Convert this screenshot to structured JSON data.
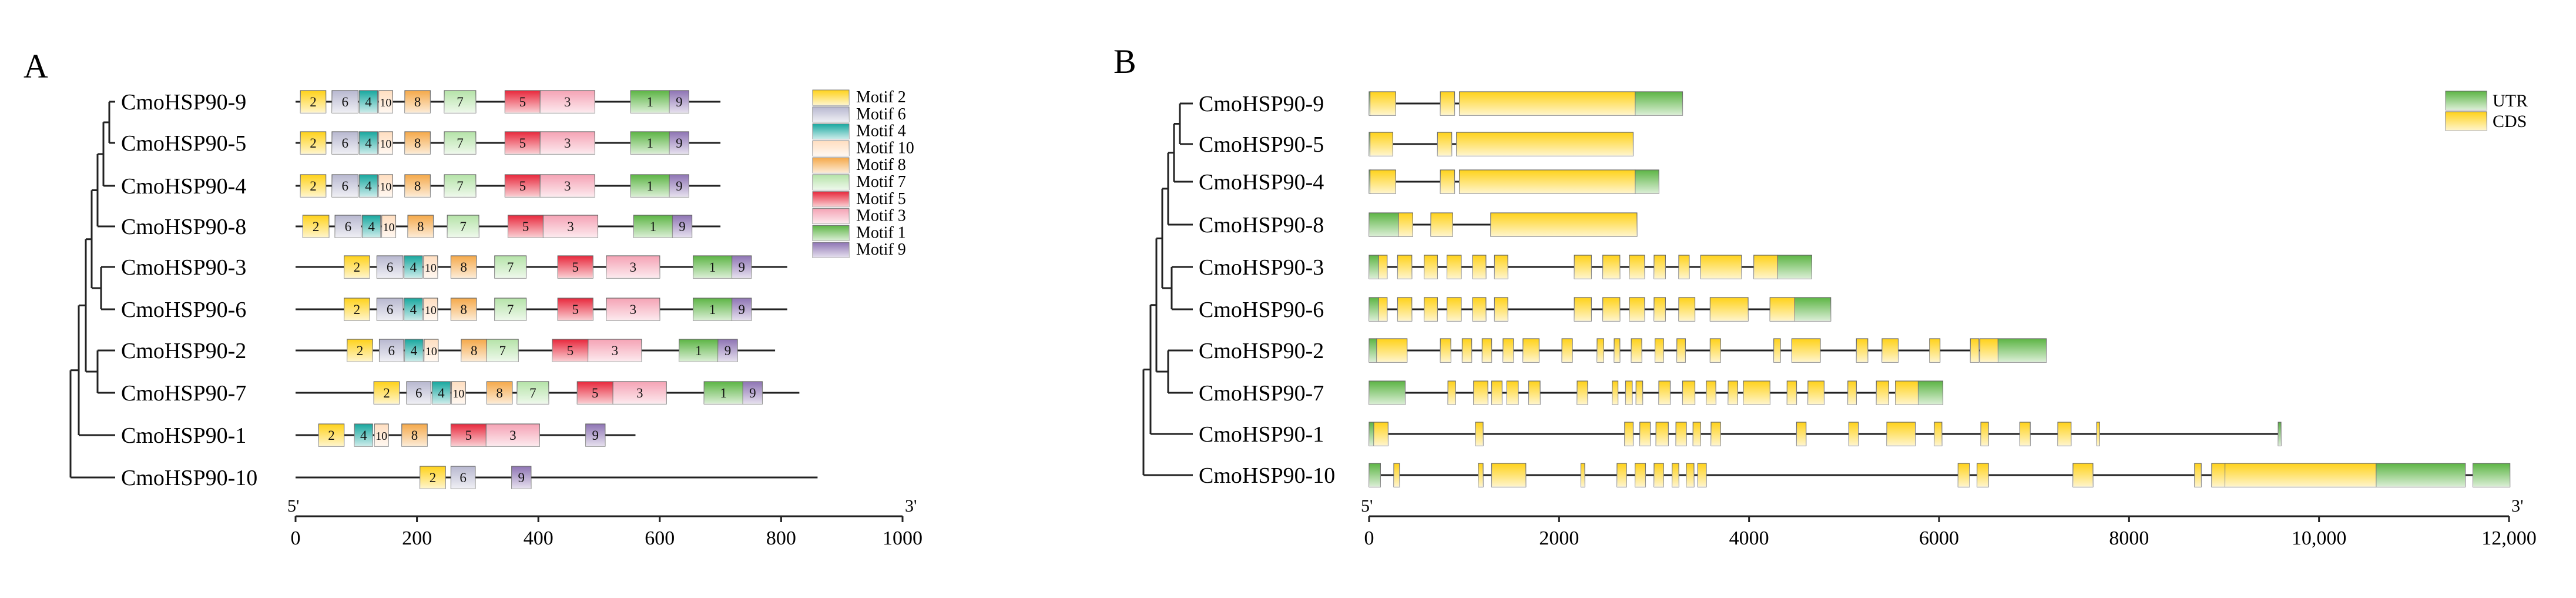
{
  "panels": {
    "a_letter": "A",
    "b_letter": "B"
  },
  "genes": [
    "CmoHSP90-9",
    "CmoHSP90-5",
    "CmoHSP90-4",
    "CmoHSP90-8",
    "CmoHSP90-3",
    "CmoHSP90-6",
    "CmoHSP90-2",
    "CmoHSP90-7",
    "CmoHSP90-1",
    "CmoHSP90-10"
  ],
  "motif_legend": [
    {
      "label": "Motif 2",
      "id": "2",
      "color": "#FFD21A"
    },
    {
      "label": "Motif 6",
      "id": "6",
      "color": "#B8B8D0"
    },
    {
      "label": "Motif 4",
      "id": "4",
      "color": "#18A8A0"
    },
    {
      "label": "Motif 10",
      "id": "10",
      "color": "#FFDEC0"
    },
    {
      "label": "Motif 8",
      "id": "8",
      "color": "#F5A94A"
    },
    {
      "label": "Motif 7",
      "id": "7",
      "color": "#B5E3A8"
    },
    {
      "label": "Motif 5",
      "id": "5",
      "color": "#E8283C"
    },
    {
      "label": "Motif 3",
      "id": "3",
      "color": "#F5A3B5"
    },
    {
      "label": "Motif 1",
      "id": "1",
      "color": "#5DB545"
    },
    {
      "label": "Motif 9",
      "id": "9",
      "color": "#8E74B4"
    }
  ],
  "motif_axis": {
    "start_label": "5'",
    "end_label": "3'",
    "min": 0,
    "max": 1000,
    "ticks": [
      0,
      200,
      400,
      600,
      800,
      1000
    ]
  },
  "protein_motifs": [
    {
      "gene": "CmoHSP90-9",
      "length": 700,
      "motifs": [
        [
          "2",
          8,
          50
        ],
        [
          "6",
          60,
          103
        ],
        [
          "4",
          105,
          135
        ],
        [
          "10",
          137,
          160
        ],
        [
          "8",
          180,
          222
        ],
        [
          "7",
          245,
          297
        ],
        [
          "5",
          345,
          403
        ],
        [
          "3",
          403,
          493
        ],
        [
          "1",
          552,
          616
        ],
        [
          "9",
          616,
          648
        ]
      ]
    },
    {
      "gene": "CmoHSP90-5",
      "length": 700,
      "motifs": [
        [
          "2",
          8,
          50
        ],
        [
          "6",
          60,
          103
        ],
        [
          "4",
          105,
          135
        ],
        [
          "10",
          137,
          160
        ],
        [
          "8",
          180,
          222
        ],
        [
          "7",
          245,
          297
        ],
        [
          "5",
          345,
          403
        ],
        [
          "3",
          403,
          493
        ],
        [
          "1",
          552,
          616
        ],
        [
          "9",
          616,
          648
        ]
      ]
    },
    {
      "gene": "CmoHSP90-4",
      "length": 700,
      "motifs": [
        [
          "2",
          8,
          50
        ],
        [
          "6",
          60,
          103
        ],
        [
          "4",
          105,
          135
        ],
        [
          "10",
          137,
          160
        ],
        [
          "8",
          180,
          222
        ],
        [
          "7",
          245,
          297
        ],
        [
          "5",
          345,
          403
        ],
        [
          "3",
          403,
          493
        ],
        [
          "1",
          552,
          616
        ],
        [
          "9",
          616,
          648
        ]
      ]
    },
    {
      "gene": "CmoHSP90-8",
      "length": 700,
      "motifs": [
        [
          "2",
          12,
          55
        ],
        [
          "6",
          65,
          108
        ],
        [
          "4",
          110,
          140
        ],
        [
          "10",
          142,
          165
        ],
        [
          "8",
          185,
          227
        ],
        [
          "7",
          250,
          302
        ],
        [
          "5",
          350,
          408
        ],
        [
          "3",
          408,
          498
        ],
        [
          "1",
          557,
          621
        ],
        [
          "9",
          621,
          653
        ]
      ]
    },
    {
      "gene": "CmoHSP90-3",
      "length": 810,
      "motifs": [
        [
          "2",
          80,
          122
        ],
        [
          "6",
          134,
          177
        ],
        [
          "4",
          179,
          209
        ],
        [
          "10",
          211,
          234
        ],
        [
          "8",
          256,
          298
        ],
        [
          "7",
          328,
          380
        ],
        [
          "5",
          432,
          490
        ],
        [
          "3",
          512,
          600
        ],
        [
          "1",
          655,
          719
        ],
        [
          "9",
          719,
          751
        ]
      ]
    },
    {
      "gene": "CmoHSP90-6",
      "length": 810,
      "motifs": [
        [
          "2",
          80,
          122
        ],
        [
          "6",
          134,
          177
        ],
        [
          "4",
          179,
          209
        ],
        [
          "10",
          211,
          234
        ],
        [
          "8",
          256,
          298
        ],
        [
          "7",
          328,
          380
        ],
        [
          "5",
          432,
          490
        ],
        [
          "3",
          512,
          600
        ],
        [
          "1",
          655,
          719
        ],
        [
          "9",
          719,
          751
        ]
      ]
    },
    {
      "gene": "CmoHSP90-2",
      "length": 790,
      "motifs": [
        [
          "2",
          85,
          127
        ],
        [
          "6",
          138,
          178
        ],
        [
          "4",
          180,
          210
        ],
        [
          "10",
          212,
          235
        ],
        [
          "8",
          273,
          315
        ],
        [
          "7",
          315,
          367
        ],
        [
          "5",
          423,
          482
        ],
        [
          "3",
          482,
          570
        ],
        [
          "1",
          632,
          696
        ],
        [
          "9",
          696,
          728
        ]
      ]
    },
    {
      "gene": "CmoHSP90-7",
      "length": 830,
      "motifs": [
        [
          "2",
          129,
          171
        ],
        [
          "6",
          183,
          223
        ],
        [
          "4",
          225,
          255
        ],
        [
          "10",
          257,
          280
        ],
        [
          "8",
          315,
          357
        ],
        [
          "7",
          365,
          417
        ],
        [
          "5",
          464,
          523
        ],
        [
          "3",
          523,
          611
        ],
        [
          "1",
          673,
          737
        ],
        [
          "9",
          737,
          769
        ]
      ]
    },
    {
      "gene": "CmoHSP90-1",
      "length": 560,
      "motifs": [
        [
          "2",
          38,
          80
        ],
        [
          "4",
          97,
          127
        ],
        [
          "10",
          130,
          153
        ],
        [
          "8",
          175,
          217
        ],
        [
          "5",
          256,
          314
        ],
        [
          "3",
          314,
          402
        ],
        [
          "9",
          478,
          510
        ]
      ]
    },
    {
      "gene": "CmoHSP90-10",
      "length": 860,
      "motifs": [
        [
          "2",
          205,
          247
        ],
        [
          "6",
          256,
          296
        ],
        [
          "9",
          356,
          388
        ]
      ]
    }
  ],
  "gene_legend": [
    {
      "label": "UTR",
      "color": "#5DB545"
    },
    {
      "label": "CDS",
      "color": "#FFD21A"
    }
  ],
  "gene_axis": {
    "start_label": "5'",
    "end_label": "3'",
    "min": 0,
    "max": 12000,
    "ticks": [
      0,
      2000,
      4000,
      6000,
      8000,
      10000,
      12000
    ],
    "tick_labels": [
      "0",
      "2000",
      "4000",
      "6000",
      "8000",
      "10,000",
      "12,000"
    ]
  },
  "gene_structures": [
    {
      "gene": "CmoHSP90-9",
      "length": 3300,
      "utr": [
        [
          0,
          10
        ],
        [
          2800,
          3300
        ]
      ],
      "cds": [
        [
          10,
          280
        ],
        [
          750,
          900
        ],
        [
          950,
          2800
        ]
      ]
    },
    {
      "gene": "CmoHSP90-5",
      "length": 2780,
      "utr": [
        [
          0,
          10
        ]
      ],
      "cds": [
        [
          10,
          250
        ],
        [
          720,
          870
        ],
        [
          920,
          2780
        ]
      ]
    },
    {
      "gene": "CmoHSP90-4",
      "length": 3050,
      "utr": [
        [
          0,
          10
        ],
        [
          2800,
          3050
        ]
      ],
      "cds": [
        [
          10,
          280
        ],
        [
          750,
          900
        ],
        [
          950,
          2800
        ]
      ]
    },
    {
      "gene": "CmoHSP90-8",
      "length": 2820,
      "utr": [
        [
          0,
          310
        ]
      ],
      "cds": [
        [
          310,
          460
        ],
        [
          650,
          880
        ],
        [
          1280,
          2820
        ]
      ]
    },
    {
      "gene": "CmoHSP90-3",
      "length": 4660,
      "utr": [
        [
          0,
          100
        ],
        [
          4300,
          4660
        ]
      ],
      "cds": [
        [
          100,
          190
        ],
        [
          300,
          450
        ],
        [
          580,
          720
        ],
        [
          820,
          970
        ],
        [
          1090,
          1230
        ],
        [
          1320,
          1460
        ],
        [
          2160,
          2340
        ],
        [
          2460,
          2640
        ],
        [
          2740,
          2900
        ],
        [
          3000,
          3120
        ],
        [
          3260,
          3370
        ],
        [
          3490,
          3920
        ],
        [
          4050,
          4300
        ]
      ]
    },
    {
      "gene": "CmoHSP90-6",
      "length": 4860,
      "utr": [
        [
          0,
          100
        ],
        [
          4480,
          4860
        ]
      ],
      "cds": [
        [
          100,
          190
        ],
        [
          300,
          450
        ],
        [
          580,
          720
        ],
        [
          820,
          970
        ],
        [
          1090,
          1230
        ],
        [
          1320,
          1460
        ],
        [
          2160,
          2340
        ],
        [
          2460,
          2640
        ],
        [
          2740,
          2900
        ],
        [
          3000,
          3120
        ],
        [
          3260,
          3430
        ],
        [
          3590,
          3990
        ],
        [
          4220,
          4480
        ]
      ]
    },
    {
      "gene": "CmoHSP90-2",
      "length": 7130,
      "utr": [
        [
          0,
          80
        ],
        [
          6620,
          7130
        ]
      ],
      "cds": [
        [
          80,
          400
        ],
        [
          750,
          860
        ],
        [
          980,
          1080
        ],
        [
          1190,
          1290
        ],
        [
          1410,
          1520
        ],
        [
          1620,
          1790
        ],
        [
          2030,
          2140
        ],
        [
          2400,
          2470
        ],
        [
          2580,
          2640
        ],
        [
          2760,
          2870
        ],
        [
          3010,
          3100
        ],
        [
          3240,
          3330
        ],
        [
          3590,
          3700
        ],
        [
          4260,
          4330
        ],
        [
          4450,
          4750
        ],
        [
          5130,
          5250
        ],
        [
          5400,
          5570
        ],
        [
          5900,
          6010
        ],
        [
          6330,
          6420
        ],
        [
          6430,
          6620
        ]
      ]
    },
    {
      "gene": "CmoHSP90-7",
      "length": 6040,
      "utr": [
        [
          0,
          380
        ],
        [
          5780,
          6040
        ]
      ],
      "cds": [
        [
          830,
          910
        ],
        [
          1100,
          1250
        ],
        [
          1290,
          1400
        ],
        [
          1450,
          1570
        ],
        [
          1680,
          1800
        ],
        [
          2190,
          2300
        ],
        [
          2560,
          2620
        ],
        [
          2700,
          2770
        ],
        [
          2810,
          2880
        ],
        [
          3050,
          3170
        ],
        [
          3300,
          3430
        ],
        [
          3550,
          3650
        ],
        [
          3780,
          3880
        ],
        [
          3940,
          4220
        ],
        [
          4400,
          4500
        ],
        [
          4620,
          4790
        ],
        [
          5040,
          5130
        ],
        [
          5340,
          5470
        ],
        [
          5540,
          5780
        ]
      ]
    },
    {
      "gene": "CmoHSP90-1",
      "length": 9600,
      "utr": [
        [
          0,
          50
        ],
        [
          9570,
          9600
        ]
      ],
      "cds": [
        [
          50,
          200
        ],
        [
          1120,
          1200
        ],
        [
          2690,
          2780
        ],
        [
          2850,
          2960
        ],
        [
          3020,
          3150
        ],
        [
          3230,
          3340
        ],
        [
          3410,
          3490
        ],
        [
          3600,
          3700
        ],
        [
          4500,
          4600
        ],
        [
          5050,
          5150
        ],
        [
          5450,
          5750
        ],
        [
          5950,
          6030
        ],
        [
          6440,
          6520
        ],
        [
          6850,
          6960
        ],
        [
          7250,
          7390
        ],
        [
          7660,
          7690
        ]
      ]
    },
    {
      "gene": "CmoHSP90-10",
      "length": 12010,
      "utr": [
        [
          0,
          120
        ],
        [
          10600,
          11540
        ],
        [
          11620,
          12010
        ]
      ],
      "cds": [
        [
          260,
          320
        ],
        [
          1150,
          1200
        ],
        [
          1290,
          1650
        ],
        [
          2230,
          2270
        ],
        [
          2610,
          2710
        ],
        [
          2800,
          2910
        ],
        [
          3000,
          3100
        ],
        [
          3190,
          3260
        ],
        [
          3340,
          3420
        ],
        [
          3460,
          3550
        ],
        [
          6200,
          6320
        ],
        [
          6400,
          6520
        ],
        [
          7410,
          7620
        ],
        [
          8690,
          8760
        ],
        [
          8870,
          9010
        ],
        [
          9010,
          10600
        ]
      ]
    }
  ]
}
